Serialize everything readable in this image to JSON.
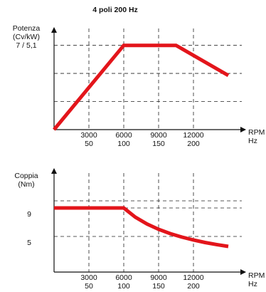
{
  "title": "4 poli 200 Hz",
  "colors": {
    "curve": "#e3151b",
    "axis": "#111111",
    "grid": "#222222"
  },
  "chart_data": [
    {
      "type": "line",
      "name": "power",
      "ylabel": [
        "Potenza",
        "(Cv/kW)"
      ],
      "ytick_label": "7 / 5,1",
      "xlabel": [
        "RPM",
        "Hz"
      ],
      "xlim": [
        0,
        15000
      ],
      "ylim": [
        0,
        8.4
      ],
      "x_ticks_rpm": [
        "3000",
        "6000",
        "9000",
        "12000"
      ],
      "x_ticks_hz": [
        "50",
        "100",
        "150",
        "200"
      ],
      "x": [
        0,
        6000,
        10500,
        15000
      ],
      "y": [
        0,
        7,
        7,
        4.5
      ],
      "grid": true
    },
    {
      "type": "line",
      "name": "torque",
      "ylabel": [
        "Coppia",
        "(Nm)"
      ],
      "yticks": [
        "9",
        "5"
      ],
      "xlabel": [
        "RPM",
        "Hz"
      ],
      "xlim": [
        0,
        15000
      ],
      "ylim": [
        0,
        14
      ],
      "x_ticks_rpm": [
        "3000",
        "6000",
        "9000",
        "12000"
      ],
      "x_ticks_hz": [
        "50",
        "100",
        "150",
        "200"
      ],
      "x": [
        0,
        6000,
        7000,
        8000,
        9000,
        10000,
        11000,
        12000,
        13000,
        14000,
        15000
      ],
      "y": [
        9,
        9,
        7.71,
        6.75,
        6,
        5.4,
        4.91,
        4.5,
        4.15,
        3.86,
        3.6
      ],
      "grid": true
    }
  ]
}
